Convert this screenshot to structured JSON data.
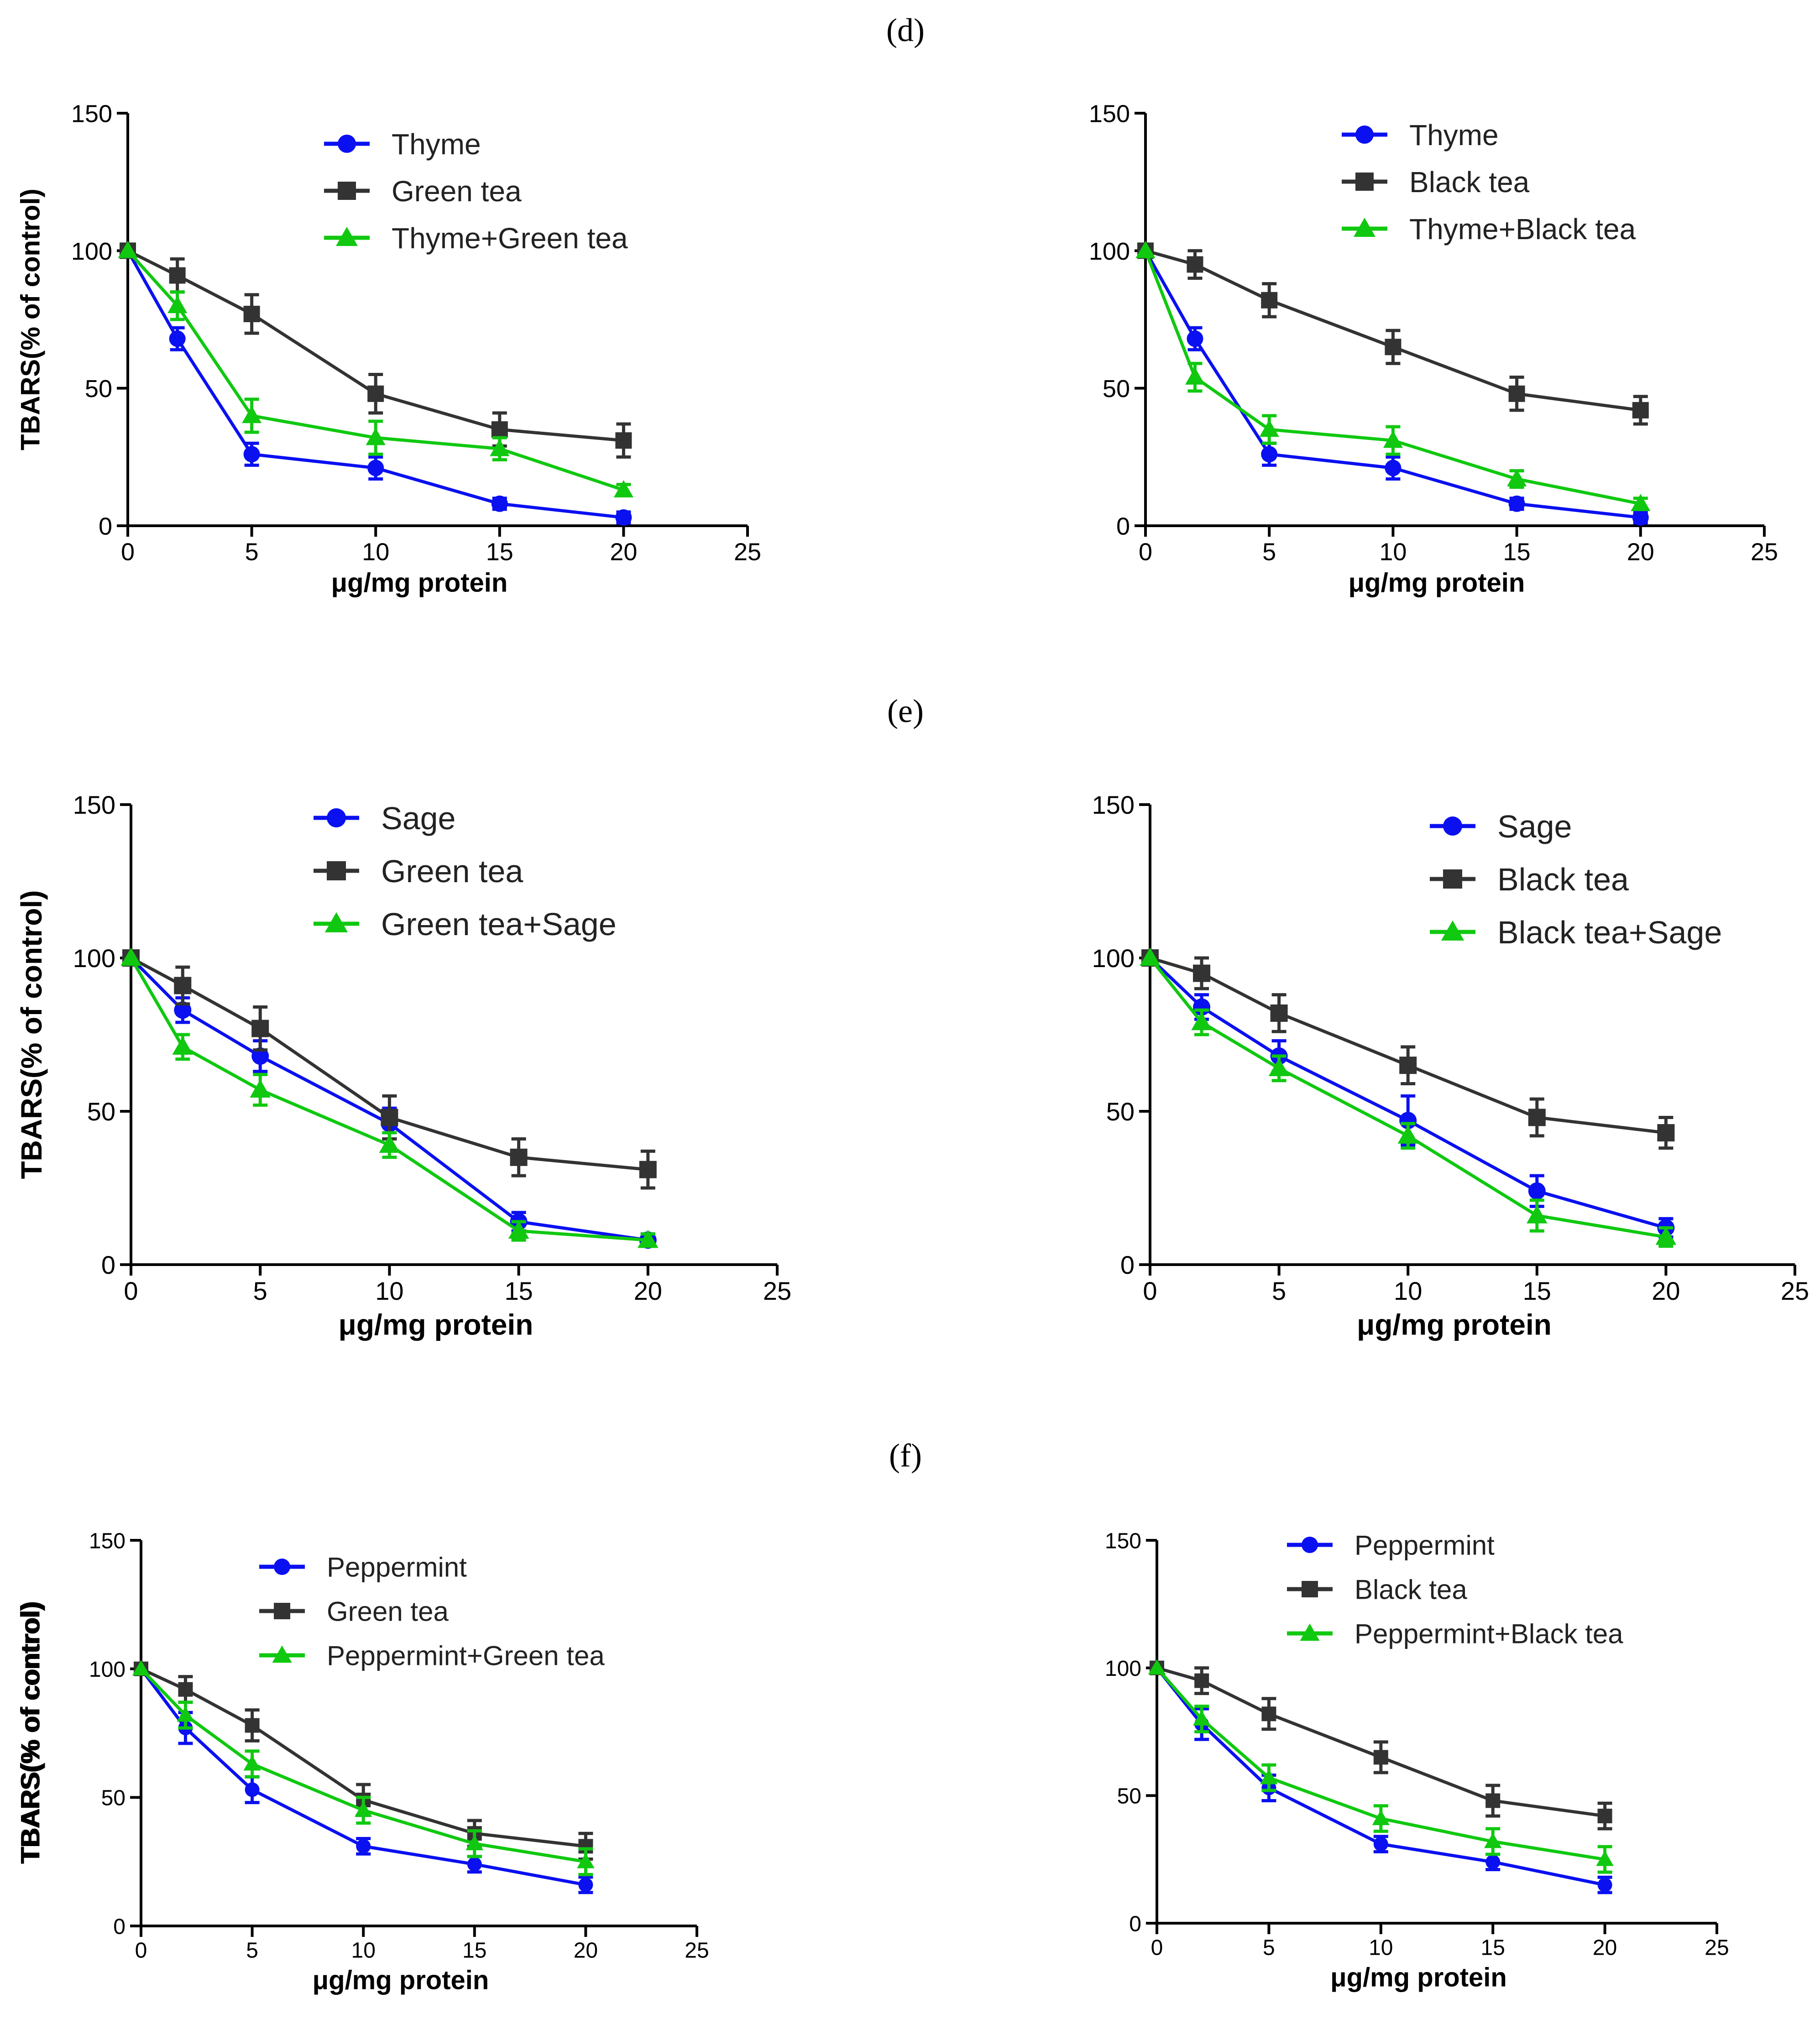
{
  "panel_labels": [
    "(d)",
    "(e)",
    "(f)"
  ],
  "colors": {
    "series1": "#0a10f0",
    "series2": "#333333",
    "series3": "#10c810"
  },
  "chart_data": [
    {
      "type": "line",
      "panel": "(d)",
      "xlabel": "μg/mg protein",
      "ylabel": "TBARS(% of control)",
      "xlim": [
        0,
        25
      ],
      "ylim": [
        0,
        150
      ],
      "xticks": [
        0,
        5,
        10,
        15,
        20,
        25
      ],
      "yticks": [
        0,
        50,
        100,
        150
      ],
      "x": [
        0,
        2,
        5,
        10,
        15,
        20
      ],
      "series": [
        {
          "name": "Thyme",
          "marker": "circle",
          "values": [
            100,
            68,
            26,
            21,
            8,
            3
          ],
          "errors": [
            0,
            4,
            4,
            4,
            2,
            2
          ]
        },
        {
          "name": "Green tea",
          "marker": "square",
          "values": [
            100,
            91,
            77,
            48,
            35,
            31
          ],
          "errors": [
            0,
            6,
            7,
            7,
            6,
            6
          ]
        },
        {
          "name": "Thyme+Green tea",
          "marker": "triangle",
          "values": [
            100,
            80,
            40,
            32,
            28,
            13
          ],
          "errors": [
            0,
            5,
            6,
            6,
            4,
            2
          ]
        }
      ]
    },
    {
      "type": "line",
      "panel": "(d)",
      "xlabel": "μg/mg protein",
      "ylabel": "TBARS(% of control)",
      "xlim": [
        0,
        25
      ],
      "ylim": [
        0,
        150
      ],
      "xticks": [
        0,
        5,
        10,
        15,
        20,
        25
      ],
      "yticks": [
        0,
        50,
        100,
        150
      ],
      "x": [
        0,
        2,
        5,
        10,
        15,
        20
      ],
      "series": [
        {
          "name": "Thyme",
          "marker": "circle",
          "values": [
            100,
            68,
            26,
            21,
            8,
            3
          ],
          "errors": [
            0,
            4,
            4,
            4,
            2,
            2
          ]
        },
        {
          "name": "Black tea",
          "marker": "square",
          "values": [
            100,
            95,
            82,
            65,
            48,
            42
          ],
          "errors": [
            0,
            5,
            6,
            6,
            6,
            5
          ]
        },
        {
          "name": "Thyme+Black tea",
          "marker": "triangle",
          "values": [
            100,
            54,
            35,
            31,
            17,
            8
          ],
          "errors": [
            0,
            5,
            5,
            5,
            3,
            2
          ]
        }
      ]
    },
    {
      "type": "line",
      "panel": "(e)",
      "xlabel": "μg/mg protein",
      "ylabel": "TBARS(% of control)",
      "xlim": [
        0,
        25
      ],
      "ylim": [
        0,
        150
      ],
      "xticks": [
        0,
        5,
        10,
        15,
        20,
        25
      ],
      "yticks": [
        0,
        50,
        100,
        150
      ],
      "x": [
        0,
        2,
        5,
        10,
        15,
        20
      ],
      "series": [
        {
          "name": "Sage",
          "marker": "circle",
          "values": [
            100,
            83,
            68,
            46,
            14,
            8
          ],
          "errors": [
            0,
            4,
            5,
            5,
            3,
            2
          ]
        },
        {
          "name": "Green tea",
          "marker": "square",
          "values": [
            100,
            91,
            77,
            48,
            35,
            31
          ],
          "errors": [
            0,
            6,
            7,
            7,
            6,
            6
          ]
        },
        {
          "name": "Green tea+Sage",
          "marker": "triangle",
          "values": [
            100,
            71,
            57,
            39,
            11,
            8
          ],
          "errors": [
            0,
            4,
            5,
            4,
            3,
            2
          ]
        }
      ]
    },
    {
      "type": "line",
      "panel": "(e)",
      "xlabel": "μg/mg protein",
      "ylabel": "TBARS(% of control)",
      "xlim": [
        0,
        25
      ],
      "ylim": [
        0,
        150
      ],
      "xticks": [
        0,
        5,
        10,
        15,
        20,
        25
      ],
      "yticks": [
        0,
        50,
        100,
        150
      ],
      "x": [
        0,
        2,
        5,
        10,
        15,
        20
      ],
      "series": [
        {
          "name": "Sage",
          "marker": "circle",
          "values": [
            100,
            84,
            68,
            47,
            24,
            12
          ],
          "errors": [
            0,
            4,
            5,
            8,
            5,
            3
          ]
        },
        {
          "name": "Black tea",
          "marker": "square",
          "values": [
            100,
            95,
            82,
            65,
            48,
            43
          ],
          "errors": [
            0,
            5,
            6,
            6,
            6,
            5
          ]
        },
        {
          "name": "Black tea+Sage",
          "marker": "triangle",
          "values": [
            100,
            79,
            64,
            42,
            16,
            9
          ],
          "errors": [
            0,
            4,
            4,
            4,
            5,
            3
          ]
        }
      ]
    },
    {
      "type": "line",
      "panel": "(f)",
      "xlabel": "μg/mg protein",
      "ylabel": "TBARS(% of control)",
      "xlim": [
        0,
        25
      ],
      "ylim": [
        0,
        150
      ],
      "xticks": [
        0,
        5,
        10,
        15,
        20,
        25
      ],
      "yticks": [
        0,
        50,
        100,
        150
      ],
      "x": [
        0,
        2,
        5,
        10,
        15,
        20
      ],
      "series": [
        {
          "name": "Peppermint",
          "marker": "circle",
          "values": [
            100,
            77,
            53,
            31,
            24,
            16
          ],
          "errors": [
            0,
            6,
            5,
            3,
            3,
            3
          ]
        },
        {
          "name": "Green tea",
          "marker": "square",
          "values": [
            100,
            92,
            78,
            49,
            36,
            31
          ],
          "errors": [
            0,
            5,
            6,
            6,
            5,
            5
          ]
        },
        {
          "name": "Peppermint+Green tea",
          "marker": "triangle",
          "values": [
            100,
            82,
            63,
            45,
            32,
            25
          ],
          "errors": [
            0,
            5,
            5,
            5,
            5,
            5
          ]
        }
      ]
    },
    {
      "type": "line",
      "panel": "(f)",
      "xlabel": "μg/mg protein",
      "ylabel": "TBARS(% of control)",
      "xlim": [
        0,
        25
      ],
      "ylim": [
        0,
        150
      ],
      "xticks": [
        0,
        5,
        10,
        15,
        20,
        25
      ],
      "yticks": [
        0,
        50,
        100,
        150
      ],
      "x": [
        0,
        2,
        5,
        10,
        15,
        20
      ],
      "series": [
        {
          "name": "Peppermint",
          "marker": "circle",
          "values": [
            100,
            78,
            53,
            31,
            24,
            15
          ],
          "errors": [
            0,
            6,
            5,
            3,
            3,
            3
          ]
        },
        {
          "name": "Black tea",
          "marker": "square",
          "values": [
            100,
            95,
            82,
            65,
            48,
            42
          ],
          "errors": [
            0,
            5,
            6,
            6,
            6,
            5
          ]
        },
        {
          "name": "Peppermint+Black tea",
          "marker": "triangle",
          "values": [
            100,
            80,
            57,
            41,
            32,
            25
          ],
          "errors": [
            0,
            5,
            5,
            5,
            5,
            5
          ]
        }
      ]
    }
  ]
}
